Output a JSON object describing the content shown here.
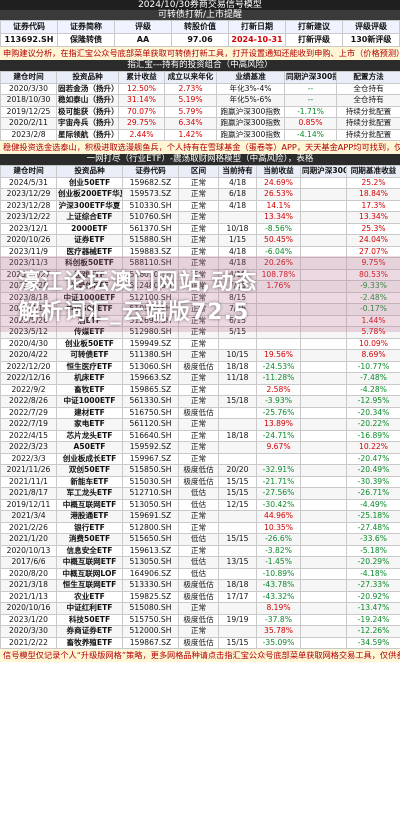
{
  "top_title": "2024/10/30券商交易信号模型",
  "sub_title": "可转债打新/上市提醒",
  "header": {
    "labels": [
      "证券代码",
      "证券简称",
      "评级",
      "转股价值",
      "打新日期",
      "打新建议",
      "评级评级"
    ],
    "values": [
      "113692.SH",
      "保隆转债",
      "AA",
      "97.06",
      "2024-10-31",
      "打新评级",
      "130新评级"
    ]
  },
  "notice1": "申购建议分析，在指汇宝公众号底部菜单获取可转债打新工具，打开设置通知还能收到申购、上市（价格预测）通知，仅供参考",
  "section1": {
    "title": "指汇宝---持有的投资组合（中高风险）",
    "columns": [
      "建仓时间",
      "投资品种",
      "累计收益",
      "成立以来年化",
      "业绩基准",
      "同期沪深300指数",
      "配置方法"
    ],
    "rows": [
      [
        "2020/3/30",
        "固若金汤（扬升）",
        "12.50%",
        "2.73%",
        "年化3%-4%",
        "--",
        "全仓持有"
      ],
      [
        "2018/10/30",
        "稳如泰山（扬升）",
        "31.14%",
        "5.19%",
        "年化5%-6%",
        "--",
        "全仓持有"
      ],
      [
        "2019/12/25",
        "极可能获（扬升）",
        "70.07%",
        "5.79%",
        "跑赢沪深300指数",
        "-1.71%",
        "持续分批配置"
      ],
      [
        "2020/2/11",
        "宇宙舟兵（扬升）",
        "29.75%",
        "6.34%",
        "跑赢沪深300指数",
        "0.85%",
        "持续分批配置"
      ],
      [
        "2023/2/8",
        "星际领航（扬升）",
        "2.44%",
        "1.42%",
        "跑赢沪深300指数",
        "-4.14%",
        "持续分批配置"
      ]
    ]
  },
  "notice2": "稳健投资选金选泰山，积极进取选漫舰鱼兵，个人持有在雪球基金（蛋卷等）APP，天天基金APP均可找到，仅供参考",
  "section2": {
    "title": "一网打尽（行业ETF）-震荡取财网格模型（中高风险），表格",
    "columns": [
      "建仓时间",
      "投资品种",
      "证券代码",
      "区间",
      "当前持有",
      "当前收益",
      "同期沪深300",
      "同期基准收益"
    ],
    "rows": [
      [
        "2024/5/31",
        "创业50ETF",
        "159682.SZ",
        "正常",
        "4/18",
        "24.69%",
        "",
        "25.2%"
      ],
      [
        "2023/12/29",
        "创业板200ETF华夏",
        "159573.SZ",
        "正常",
        "6/18",
        "26.53%",
        "",
        "18.84%"
      ],
      [
        "2023/12/28",
        "沪深300ETF华夏",
        "510330.SH",
        "正常",
        "4/18",
        "14.1%",
        "",
        "17.3%"
      ],
      [
        "2023/12/22",
        "上证综合ETF",
        "510760.SH",
        "正常",
        "",
        "13.34%",
        "",
        "13.34%"
      ],
      [
        "2023/12/1",
        "2000ETF",
        "561370.SH",
        "正常",
        "10/18",
        "-8.56%",
        "",
        "25.3%"
      ],
      [
        "2020/10/26",
        "证券ETF",
        "515880.SH",
        "正常",
        "1/15",
        "50.45%",
        "",
        "24.04%"
      ],
      [
        "2023/11/9",
        "医疗器械ETF",
        "159883.SZ",
        "正常",
        "4/18",
        "-6.04%",
        "",
        "27.07%"
      ],
      [
        "2023/11/3",
        "科创板50ETF",
        "588110.SH",
        "正常",
        "4/18",
        "20.26%",
        "",
        "9.75%"
      ],
      [
        "2023/10/27",
        "游戏ETF",
        "516010.SH",
        "正常",
        "4/18",
        "108.78%",
        "",
        "80.53%"
      ],
      [
        "2023/9/28",
        "半导体ETF",
        "512480.SH",
        "正常",
        "7/15",
        "1.76%",
        "",
        "-9.33%"
      ],
      [
        "2023/8/18",
        "中证1000ETF",
        "512100.SH",
        "正常",
        "8/15",
        "",
        "",
        "-2.48%"
      ],
      [
        "2023/7/14",
        "中证500ETF",
        "510580.SH",
        "正常",
        "7/15",
        "",
        "",
        "-0.17%"
      ],
      [
        "2023/5/26",
        "酒ETF",
        "512690.SH",
        "正常",
        "6/15",
        "",
        "",
        "1.44%"
      ],
      [
        "2023/5/12",
        "传媒ETF",
        "512980.SH",
        "正常",
        "5/15",
        "",
        "",
        "5.78%"
      ],
      [
        "2020/4/30",
        "创业板50ETF",
        "159949.SZ",
        "正常",
        "",
        "",
        "",
        "10.09%"
      ],
      [
        "2020/4/22",
        "可转债ETF",
        "511380.SH",
        "正常",
        "10/15",
        "19.56%",
        "",
        "8.69%"
      ],
      [
        "2022/12/20",
        "恒生医疗ETF",
        "513060.SH",
        "极度低估",
        "18/18",
        "-24.53%",
        "",
        "-10.77%"
      ],
      [
        "2022/12/16",
        "机床ETF",
        "159663.SZ",
        "正常",
        "11/18",
        "-11.28%",
        "",
        "-7.48%"
      ],
      [
        "2022/9/2",
        "畜牧ETF",
        "159865.SZ",
        "正常",
        "",
        "2.58%",
        "",
        "-4.28%"
      ],
      [
        "2022/8/26",
        "中证1000ETF",
        "561330.SH",
        "正常",
        "15/18",
        "-3.93%",
        "",
        "-12.95%"
      ],
      [
        "2022/7/29",
        "建材ETF",
        "516750.SH",
        "极度低估",
        "",
        "-25.76%",
        "",
        "-20.34%"
      ],
      [
        "2022/7/19",
        "家电ETF",
        "561120.SH",
        "正常",
        "",
        "13.89%",
        "",
        "-20.22%"
      ],
      [
        "2022/4/15",
        "芯片龙头ETF",
        "516640.SH",
        "正常",
        "18/18",
        "-24.71%",
        "",
        "-16.89%"
      ],
      [
        "2022/3/23",
        "A50ETF",
        "159592.SZ",
        "正常",
        "",
        "9.67%",
        "",
        "10.22%"
      ],
      [
        "2022/3/3",
        "创业板成长ETF",
        "159967.SZ",
        "正常",
        "",
        "",
        "",
        "-20.47%"
      ],
      [
        "2021/11/26",
        "双创50ETF",
        "515850.SH",
        "极度低估",
        "20/20",
        "-32.91%",
        "",
        "-20.49%"
      ],
      [
        "2021/11/1",
        "新能车ETF",
        "515030.SH",
        "极度低估",
        "15/15",
        "-21.71%",
        "",
        "-30.39%"
      ],
      [
        "2021/8/17",
        "军工龙头ETF",
        "512710.SH",
        "低估",
        "15/15",
        "-27.56%",
        "",
        "-26.71%"
      ],
      [
        "2019/12/11",
        "中概互联网ETF",
        "513050.SH",
        "低估",
        "12/15",
        "-30.42%",
        "",
        "-4.49%"
      ],
      [
        "2021/3/4",
        "港股通ETF",
        "159691.SZ",
        "正常",
        "",
        "44.96%",
        "",
        "-25.18%"
      ],
      [
        "2021/2/26",
        "银行ETF",
        "512800.SH",
        "正常",
        "",
        "10.35%",
        "",
        "-27.48%"
      ],
      [
        "2021/1/20",
        "消费50ETF",
        "515650.SH",
        "低估",
        "15/15",
        "-26.6%",
        "",
        "-33.6%"
      ],
      [
        "2020/10/13",
        "信息安全ETF",
        "159613.SZ",
        "正常",
        "",
        "-3.82%",
        "",
        "-5.18%"
      ],
      [
        "2017/6/6",
        "中概互联网ETF",
        "513050.SH",
        "低估",
        "13/15",
        "-1.45%",
        "",
        "-20.29%"
      ],
      [
        "2020/8/20",
        "中概互联网LOF",
        "164906.SZ",
        "低估",
        "",
        "-10.89%",
        "",
        "-4.18%"
      ],
      [
        "2021/3/18",
        "恒生互联网ETF",
        "513330.SH",
        "极度低估",
        "18/18",
        "-43.78%",
        "",
        "-27.33%"
      ],
      [
        "2021/1/13",
        "农业ETF",
        "159825.SZ",
        "极度低估",
        "17/17",
        "-43.32%",
        "",
        "-20.92%"
      ],
      [
        "2020/10/16",
        "中证红利ETF",
        "515080.SH",
        "正常",
        "",
        "8.19%",
        "",
        "-13.47%"
      ],
      [
        "2023/1/20",
        "科技50ETF",
        "515750.SH",
        "极度低估",
        "19/19",
        "-37.8%",
        "",
        "-19.24%"
      ],
      [
        "2020/3/30",
        "券商证券ETF",
        "512000.SH",
        "正常",
        "",
        "35.78%",
        "",
        "-12.26%"
      ],
      [
        "2021/2/22",
        "畜牧养殖ETF",
        "159867.SZ",
        "极度低估",
        "15/15",
        "-35.09%",
        "",
        "-34.59%"
      ]
    ]
  },
  "footer": "信号模型仅记录个人“升级版网格”策略，更多网格品种请点击指汇宝公众号底部菜单获取网格交易工具，仅供参考",
  "overlay": {
    "line1": "濠江论坛澳门网站,动态",
    "line2": "解析词汇_云端版72.5"
  }
}
